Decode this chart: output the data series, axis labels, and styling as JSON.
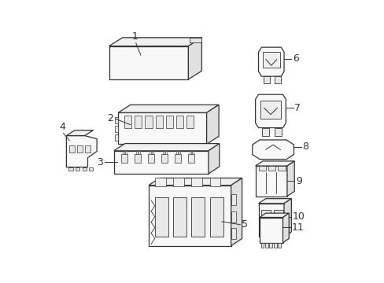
{
  "background_color": "#ffffff",
  "line_color": "#333333",
  "line_width": 0.9,
  "label_color": "#000000",
  "label_fontsize": 9,
  "fig_width": 4.89,
  "fig_height": 3.6,
  "dpi": 100
}
